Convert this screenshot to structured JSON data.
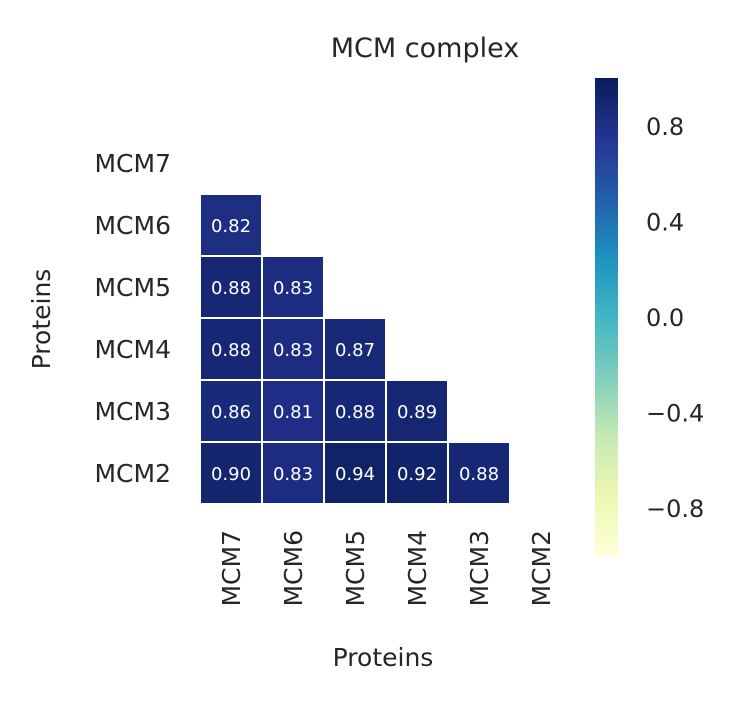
{
  "chart_data": {
    "type": "heatmap",
    "title": "MCM complex",
    "xlabel": "Proteins",
    "ylabel": "Proteins",
    "x_categories": [
      "MCM7",
      "MCM6",
      "MCM5",
      "MCM4",
      "MCM3",
      "MCM2"
    ],
    "y_categories": [
      "MCM7",
      "MCM6",
      "MCM5",
      "MCM4",
      "MCM3",
      "MCM2"
    ],
    "mask": "upper-triangle-including-diagonal",
    "cells": [
      {
        "row": "MCM6",
        "col": "MCM7",
        "value": 0.82,
        "label": "0.82"
      },
      {
        "row": "MCM5",
        "col": "MCM7",
        "value": 0.88,
        "label": "0.88"
      },
      {
        "row": "MCM5",
        "col": "MCM6",
        "value": 0.83,
        "label": "0.83"
      },
      {
        "row": "MCM4",
        "col": "MCM7",
        "value": 0.88,
        "label": "0.88"
      },
      {
        "row": "MCM4",
        "col": "MCM6",
        "value": 0.83,
        "label": "0.83"
      },
      {
        "row": "MCM4",
        "col": "MCM5",
        "value": 0.87,
        "label": "0.87"
      },
      {
        "row": "MCM3",
        "col": "MCM7",
        "value": 0.86,
        "label": "0.86"
      },
      {
        "row": "MCM3",
        "col": "MCM6",
        "value": 0.81,
        "label": "0.81"
      },
      {
        "row": "MCM3",
        "col": "MCM5",
        "value": 0.88,
        "label": "0.88"
      },
      {
        "row": "MCM3",
        "col": "MCM4",
        "value": 0.89,
        "label": "0.89"
      },
      {
        "row": "MCM2",
        "col": "MCM7",
        "value": 0.9,
        "label": "0.90"
      },
      {
        "row": "MCM2",
        "col": "MCM6",
        "value": 0.83,
        "label": "0.83"
      },
      {
        "row": "MCM2",
        "col": "MCM5",
        "value": 0.94,
        "label": "0.94"
      },
      {
        "row": "MCM2",
        "col": "MCM4",
        "value": 0.92,
        "label": "0.92"
      },
      {
        "row": "MCM2",
        "col": "MCM3",
        "value": 0.88,
        "label": "0.88"
      }
    ],
    "colorbar": {
      "colormap": "YlGnBu",
      "range": [
        -1,
        1
      ],
      "ticks": [
        0.8,
        0.4,
        0.0,
        -0.4,
        -0.8
      ],
      "tick_labels": [
        "0.8",
        "0.4",
        "0.0",
        "−0.4",
        "−0.8"
      ],
      "stops": [
        "#ffffd9",
        "#edf8b1",
        "#c7e9b4",
        "#7fcdbb",
        "#41b6c4",
        "#1d91c0",
        "#225ea8",
        "#253494",
        "#081d58"
      ]
    },
    "cell_text_color": "#ffffff",
    "grid": false
  }
}
